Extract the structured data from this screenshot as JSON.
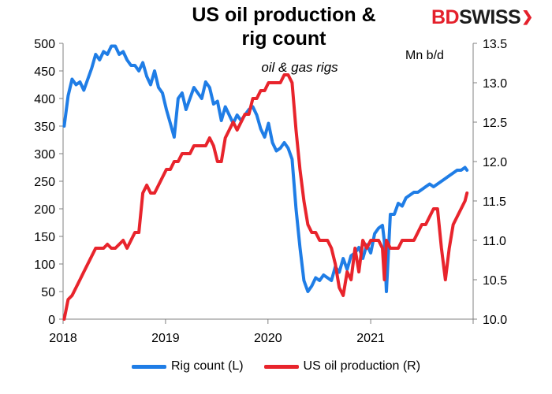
{
  "header": {
    "title_line1": "US oil production &",
    "title_line2": "rig count",
    "subtitle": "oil & gas rigs",
    "unit_right": "Mn b/d"
  },
  "brand": {
    "part1": "BD",
    "part2": "SWISS",
    "mark": "❯"
  },
  "colors": {
    "rig": "#1f7de6",
    "oil": "#e8242c",
    "accent": "#e4202b"
  },
  "chart_data": {
    "type": "line",
    "x_axis": {
      "range": [
        "2018-01",
        "2022-01"
      ],
      "tick_labels": [
        "2018",
        "2019",
        "2020",
        "2021"
      ]
    },
    "y_left": {
      "label": "",
      "range": [
        0,
        500
      ],
      "ticks": [
        0,
        50,
        100,
        150,
        200,
        250,
        300,
        350,
        400,
        450,
        500
      ]
    },
    "y_right": {
      "label": "Mn b/d",
      "range": [
        10.0,
        13.5
      ],
      "ticks": [
        "10.0",
        "10.5",
        "11.0",
        "11.5",
        "12.0",
        "12.5",
        "13.0",
        "13.5"
      ]
    },
    "grid": false,
    "legend_position": "bottom",
    "series": [
      {
        "name": "Rig count (L)",
        "axis": "left",
        "x": [
          "2018-01-05",
          "2018-01-19",
          "2018-02-02",
          "2018-02-16",
          "2018-03-02",
          "2018-03-16",
          "2018-03-30",
          "2018-04-13",
          "2018-04-27",
          "2018-05-11",
          "2018-05-25",
          "2018-06-08",
          "2018-06-22",
          "2018-07-06",
          "2018-07-20",
          "2018-08-03",
          "2018-08-17",
          "2018-08-31",
          "2018-09-14",
          "2018-09-28",
          "2018-10-12",
          "2018-10-26",
          "2018-11-09",
          "2018-11-23",
          "2018-12-07",
          "2018-12-21",
          "2019-01-04",
          "2019-01-18",
          "2019-02-01",
          "2019-02-15",
          "2019-03-01",
          "2019-03-15",
          "2019-03-29",
          "2019-04-12",
          "2019-04-26",
          "2019-05-10",
          "2019-05-24",
          "2019-06-07",
          "2019-06-21",
          "2019-07-05",
          "2019-07-19",
          "2019-08-02",
          "2019-08-16",
          "2019-08-30",
          "2019-09-13",
          "2019-09-27",
          "2019-10-11",
          "2019-10-25",
          "2019-11-08",
          "2019-11-22",
          "2019-12-06",
          "2019-12-20",
          "2020-01-03",
          "2020-01-17",
          "2020-01-31",
          "2020-02-14",
          "2020-02-28",
          "2020-03-13",
          "2020-03-27",
          "2020-04-10",
          "2020-04-24",
          "2020-05-08",
          "2020-05-22",
          "2020-06-05",
          "2020-06-19",
          "2020-07-03",
          "2020-07-17",
          "2020-07-31",
          "2020-08-14",
          "2020-08-28",
          "2020-09-11",
          "2020-09-25",
          "2020-10-09",
          "2020-10-23",
          "2020-11-06",
          "2020-11-20",
          "2020-12-04",
          "2020-12-18",
          "2021-01-01",
          "2021-01-15",
          "2021-01-29",
          "2021-02-12",
          "2021-02-19",
          "2021-02-26",
          "2021-03-12",
          "2021-03-26",
          "2021-04-09",
          "2021-04-23",
          "2021-05-07",
          "2021-05-21",
          "2021-06-04",
          "2021-06-18",
          "2021-07-02",
          "2021-07-16",
          "2021-07-30",
          "2021-08-13",
          "2021-08-27",
          "2021-09-10",
          "2021-09-24",
          "2021-10-08",
          "2021-10-22",
          "2021-11-05",
          "2021-11-19",
          "2021-12-03",
          "2021-12-10"
        ],
        "values": [
          350,
          405,
          435,
          425,
          430,
          415,
          435,
          455,
          480,
          470,
          485,
          480,
          495,
          495,
          480,
          485,
          470,
          460,
          460,
          450,
          465,
          440,
          425,
          450,
          420,
          410,
          380,
          355,
          330,
          400,
          410,
          380,
          400,
          420,
          410,
          400,
          430,
          420,
          390,
          395,
          360,
          385,
          370,
          355,
          370,
          360,
          370,
          380,
          385,
          370,
          345,
          330,
          355,
          320,
          305,
          310,
          320,
          310,
          290,
          200,
          130,
          70,
          50,
          60,
          75,
          70,
          80,
          75,
          70,
          95,
          85,
          110,
          90,
          115,
          120,
          130,
          110,
          135,
          120,
          155,
          165,
          170,
          140,
          50,
          190,
          190,
          210,
          205,
          220,
          225,
          230,
          230,
          235,
          240,
          245,
          240,
          245,
          250,
          255,
          260,
          265,
          270,
          270,
          275,
          270
        ]
      },
      {
        "name": "US oil production (R)",
        "axis": "right",
        "x": [
          "2018-01-05",
          "2018-01-19",
          "2018-02-02",
          "2018-02-16",
          "2018-03-02",
          "2018-03-16",
          "2018-03-30",
          "2018-04-13",
          "2018-04-27",
          "2018-05-11",
          "2018-05-25",
          "2018-06-08",
          "2018-06-22",
          "2018-07-06",
          "2018-07-20",
          "2018-08-03",
          "2018-08-17",
          "2018-08-31",
          "2018-09-14",
          "2018-09-28",
          "2018-10-12",
          "2018-10-26",
          "2018-11-09",
          "2018-11-23",
          "2018-12-07",
          "2018-12-21",
          "2019-01-04",
          "2019-01-18",
          "2019-02-01",
          "2019-02-15",
          "2019-03-01",
          "2019-03-15",
          "2019-03-29",
          "2019-04-12",
          "2019-04-26",
          "2019-05-10",
          "2019-05-24",
          "2019-06-07",
          "2019-06-21",
          "2019-07-05",
          "2019-07-19",
          "2019-08-02",
          "2019-08-16",
          "2019-08-30",
          "2019-09-13",
          "2019-09-27",
          "2019-10-11",
          "2019-10-25",
          "2019-11-08",
          "2019-11-22",
          "2019-12-06",
          "2019-12-20",
          "2020-01-03",
          "2020-01-17",
          "2020-01-31",
          "2020-02-14",
          "2020-02-28",
          "2020-03-13",
          "2020-03-27",
          "2020-04-10",
          "2020-04-24",
          "2020-05-08",
          "2020-05-22",
          "2020-06-05",
          "2020-06-19",
          "2020-07-03",
          "2020-07-17",
          "2020-07-31",
          "2020-08-14",
          "2020-08-28",
          "2020-09-11",
          "2020-09-25",
          "2020-10-09",
          "2020-10-23",
          "2020-11-06",
          "2020-11-20",
          "2020-12-04",
          "2020-12-18",
          "2021-01-01",
          "2021-01-15",
          "2021-01-29",
          "2021-02-12",
          "2021-02-19",
          "2021-02-26",
          "2021-03-12",
          "2021-03-26",
          "2021-04-09",
          "2021-04-23",
          "2021-05-07",
          "2021-05-21",
          "2021-06-04",
          "2021-06-18",
          "2021-07-02",
          "2021-07-16",
          "2021-07-30",
          "2021-08-13",
          "2021-08-27",
          "2021-09-10",
          "2021-09-24",
          "2021-10-08",
          "2021-10-22",
          "2021-11-05",
          "2021-11-19",
          "2021-12-03",
          "2021-12-10"
        ],
        "values": [
          10.0,
          10.25,
          10.3,
          10.4,
          10.5,
          10.6,
          10.7,
          10.8,
          10.9,
          10.9,
          10.9,
          10.95,
          10.9,
          10.9,
          10.95,
          11.0,
          10.9,
          11.0,
          11.1,
          11.1,
          11.6,
          11.7,
          11.6,
          11.6,
          11.7,
          11.8,
          11.9,
          11.9,
          12.0,
          12.0,
          12.1,
          12.1,
          12.1,
          12.2,
          12.2,
          12.2,
          12.2,
          12.3,
          12.2,
          12.0,
          12.0,
          12.3,
          12.4,
          12.5,
          12.4,
          12.5,
          12.6,
          12.6,
          12.8,
          12.8,
          12.9,
          12.9,
          13.0,
          13.0,
          13.0,
          13.0,
          13.1,
          13.1,
          13.0,
          12.4,
          11.9,
          11.5,
          11.2,
          11.1,
          11.1,
          11.0,
          11.0,
          11.0,
          10.9,
          10.7,
          10.4,
          10.3,
          10.6,
          10.5,
          10.9,
          10.6,
          11.0,
          10.9,
          11.0,
          11.0,
          11.0,
          10.9,
          10.5,
          11.0,
          10.9,
          10.9,
          10.9,
          11.0,
          11.0,
          11.0,
          11.0,
          11.1,
          11.2,
          11.2,
          11.3,
          11.4,
          11.4,
          10.9,
          10.5,
          10.9,
          11.2,
          11.3,
          11.4,
          11.5,
          11.6
        ]
      }
    ]
  }
}
